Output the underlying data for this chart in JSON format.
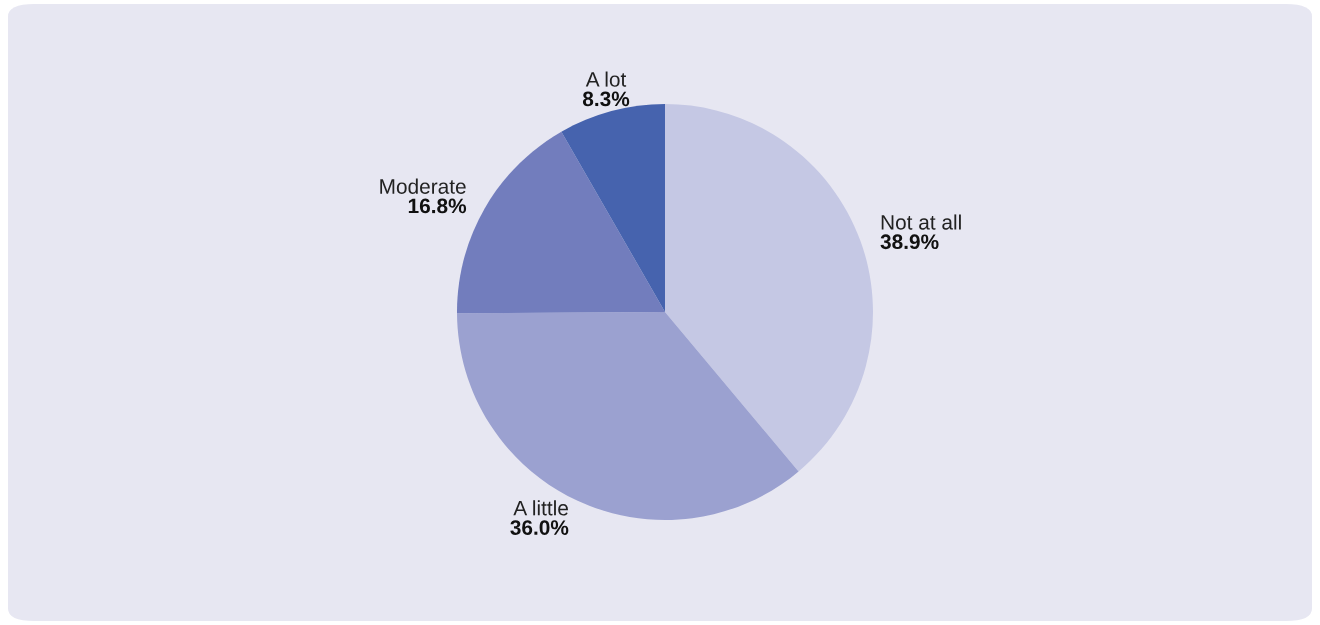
{
  "chart_data": {
    "type": "pie",
    "categories": [
      "Not at all",
      "A little",
      "Moderate",
      "A lot"
    ],
    "values": [
      38.9,
      36.0,
      16.8,
      8.3
    ],
    "colors": [
      "#c5c8e4",
      "#9ba1d0",
      "#727dbd",
      "#4663ae"
    ],
    "value_labels": [
      "38.9%",
      "36.0%",
      "16.8%",
      "8.3%"
    ]
  }
}
